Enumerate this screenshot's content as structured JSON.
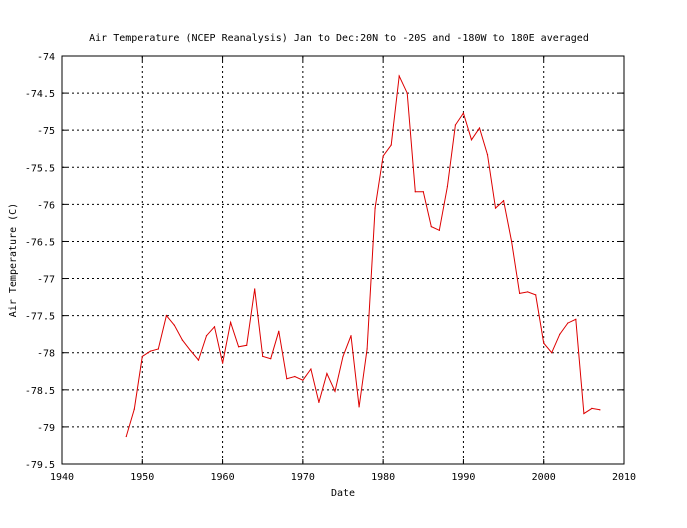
{
  "chart_data": {
    "type": "line",
    "title": "Air Temperature (NCEP Reanalysis) Jan to Dec:20N to -20S and -180W to 180E averaged",
    "xlabel": "Date",
    "ylabel": "Air Temperature (C)",
    "xlim": [
      1940,
      2010
    ],
    "ylim": [
      -79.5,
      -74
    ],
    "xticks": [
      1940,
      1950,
      1960,
      1970,
      1980,
      1990,
      2000,
      2010
    ],
    "yticks": [
      -74,
      -74.5,
      -75,
      -75.5,
      -76,
      -76.5,
      -77,
      -77.5,
      -78,
      -78.5,
      -79,
      -79.5
    ],
    "grid": true,
    "color": "#dd0000",
    "series": [
      {
        "x": [
          1948,
          1949,
          1950,
          1951,
          1952,
          1953,
          1954,
          1955,
          1956,
          1957,
          1958,
          1959,
          1960,
          1961,
          1962,
          1963,
          1964,
          1965,
          1966,
          1967,
          1968,
          1969,
          1970,
          1971,
          1972,
          1973,
          1974,
          1975,
          1976,
          1977,
          1978,
          1979,
          1980,
          1981,
          1982,
          1983,
          1984,
          1985,
          1986,
          1987,
          1988,
          1989,
          1990,
          1991,
          1992,
          1993,
          1994,
          1995,
          1996,
          1997,
          1998,
          1999,
          2000,
          2001,
          2002,
          2003,
          2004,
          2005,
          2006,
          2007
        ],
        "y": [
          -79.13,
          -78.76,
          -78.05,
          -77.98,
          -77.95,
          -77.5,
          -77.63,
          -77.83,
          -77.97,
          -78.1,
          -77.77,
          -77.65,
          -78.14,
          -77.59,
          -77.92,
          -77.9,
          -77.14,
          -78.05,
          -78.08,
          -77.71,
          -78.35,
          -78.32,
          -78.37,
          -78.22,
          -78.67,
          -78.28,
          -78.52,
          -78.05,
          -77.77,
          -78.73,
          -77.95,
          -76.05,
          -75.35,
          -75.2,
          -74.27,
          -74.5,
          -75.83,
          -75.83,
          -76.3,
          -76.35,
          -75.76,
          -74.93,
          -74.77,
          -75.13,
          -74.97,
          -75.33,
          -76.05,
          -75.95,
          -76.5,
          -77.2,
          -77.18,
          -77.22,
          -77.87,
          -78.0,
          -77.75,
          -77.6,
          -77.55,
          -78.82,
          -78.75,
          -78.77
        ]
      }
    ]
  }
}
